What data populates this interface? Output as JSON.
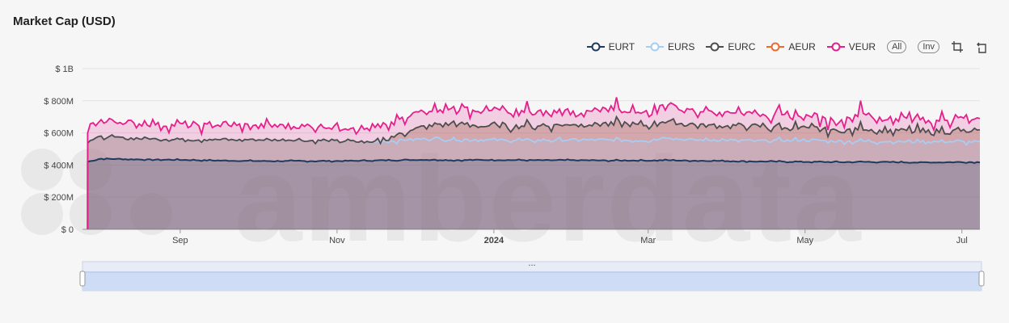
{
  "title": "Market Cap (USD)",
  "watermark": "amberdata",
  "legend": {
    "items": [
      {
        "name": "EURT",
        "color": "#1e3a5f"
      },
      {
        "name": "EURS",
        "color": "#a8cdf5"
      },
      {
        "name": "EURC",
        "color": "#4d4d4d"
      },
      {
        "name": "AEUR",
        "color": "#ed6a2a"
      },
      {
        "name": "VEUR",
        "color": "#e61e8c"
      }
    ],
    "all_label": "All",
    "inv_label": "Inv"
  },
  "chart_data": {
    "type": "area",
    "stacked": true,
    "x_range": [
      "2023-07-25",
      "2024-07-08"
    ],
    "x_ticks": [
      {
        "label": "Sep",
        "date": "2023-09-01",
        "bold": false
      },
      {
        "label": "Nov",
        "date": "2023-11-01",
        "bold": false
      },
      {
        "label": "2024",
        "date": "2024-01-01",
        "bold": true
      },
      {
        "label": "Mar",
        "date": "2024-03-01",
        "bold": false
      },
      {
        "label": "May",
        "date": "2024-05-01",
        "bold": false
      },
      {
        "label": "Jul",
        "date": "2024-07-01",
        "bold": false
      }
    ],
    "y_ticks": [
      {
        "label": "$ 0",
        "value": 0
      },
      {
        "label": "$ 200M",
        "value": 200
      },
      {
        "label": "$ 400M",
        "value": 400
      },
      {
        "label": "$ 600M",
        "value": 600
      },
      {
        "label": "$ 800M",
        "value": 800
      },
      {
        "label": "$ 1B",
        "value": 1000
      }
    ],
    "y_unit": "USD millions",
    "ylim": [
      0,
      1000
    ],
    "grid": true,
    "legend_position": "top-right",
    "dates": [
      "2023-07-27",
      "2023-08-01",
      "2023-08-15",
      "2023-09-01",
      "2023-09-15",
      "2023-10-01",
      "2023-10-15",
      "2023-11-01",
      "2023-11-15",
      "2023-12-01",
      "2023-12-08",
      "2023-12-15",
      "2024-01-01",
      "2024-01-15",
      "2024-02-01",
      "2024-02-15",
      "2024-03-01",
      "2024-03-08",
      "2024-03-15",
      "2024-04-01",
      "2024-04-15",
      "2024-05-01",
      "2024-05-15",
      "2024-05-23",
      "2024-06-01",
      "2024-06-15",
      "2024-07-01",
      "2024-07-08"
    ],
    "series": [
      {
        "name": "EURT",
        "values": [
          420,
          440,
          435,
          432,
          428,
          425,
          425,
          425,
          428,
          432,
          433,
          430,
          432,
          430,
          430,
          428,
          428,
          430,
          428,
          425,
          422,
          420,
          418,
          420,
          418,
          416,
          418,
          418
        ]
      },
      {
        "name": "EURS",
        "values": [
          130,
          135,
          130,
          128,
          130,
          132,
          130,
          125,
          115,
          130,
          135,
          130,
          125,
          122,
          125,
          128,
          125,
          145,
          130,
          130,
          128,
          135,
          130,
          128,
          128,
          130,
          128,
          125
        ]
      },
      {
        "name": "EURC",
        "values": [
          0,
          0,
          0,
          0,
          0,
          0,
          0,
          0,
          0,
          60,
          80,
          100,
          85,
          90,
          95,
          100,
          100,
          105,
          95,
          90,
          85,
          75,
          65,
          80,
          70,
          65,
          65,
          60
        ]
      },
      {
        "name": "AEUR",
        "values": [
          0,
          0,
          0,
          0,
          0,
          0,
          0,
          0,
          0,
          0,
          0,
          0,
          0,
          0,
          0,
          0,
          0,
          0,
          0,
          0,
          0,
          0,
          0,
          0,
          0,
          0,
          0,
          0
        ]
      },
      {
        "name": "VEUR",
        "values": [
          95,
          100,
          95,
          90,
          90,
          88,
          90,
          90,
          80,
          90,
          110,
          90,
          95,
          85,
          80,
          85,
          80,
          110,
          95,
          85,
          80,
          70,
          65,
          100,
          75,
          70,
          75,
          70
        ]
      }
    ]
  },
  "navigator": {
    "label": "..."
  }
}
